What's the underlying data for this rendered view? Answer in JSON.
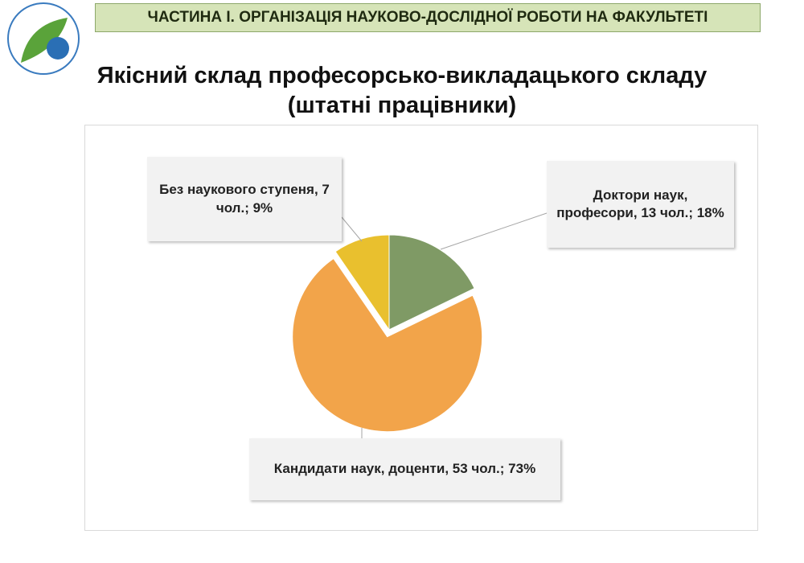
{
  "header": {
    "title": "ЧАСТИНА І. ОРГАНІЗАЦІЯ НАУКОВО-ДОСЛІДНОЇ РОБОТИ НА ФАКУЛЬТЕТІ"
  },
  "chart_data": {
    "type": "pie",
    "title": [
      "Якісний склад професорсько-викладацького складу",
      "(штатні працівники)"
    ],
    "categories": [
      "Доктори наук, професори,",
      "Кандидати наук, доценти,",
      "Без наукового ступеня,"
    ],
    "values": [
      13,
      53,
      7
    ],
    "value_labels": [
      "13 чол.; 18%",
      "53 чол.; 73%",
      "7 чол.; 9%"
    ],
    "colors": [
      "#7f9a65",
      "#f2a44a",
      "#e9c02e"
    ],
    "exploded": [
      false,
      true,
      false
    ]
  }
}
